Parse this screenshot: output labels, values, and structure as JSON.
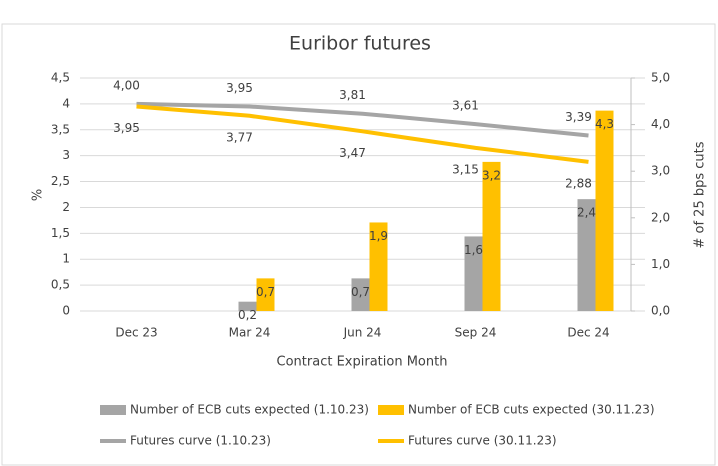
{
  "chart_data": {
    "type": "bar_line",
    "title": "Euribor futures",
    "xlabel": "Contract Expiration Month",
    "ylabel": "%",
    "y2label": "# of 25 bps cuts",
    "categories": [
      "Dec 23",
      "Mar 24",
      "Jun 24",
      "Sep 24",
      "Dec 24"
    ],
    "ylim": [
      0,
      4.5
    ],
    "yticks": [
      0,
      {
        "value": 0.5,
        "label": "0,5"
      },
      1,
      {
        "value": 1.5,
        "label": "1,5"
      },
      2,
      {
        "value": 2.5,
        "label": "2,5"
      },
      3,
      {
        "value": 3.5,
        "label": "3,5"
      },
      4,
      {
        "value": 4.5,
        "label": "4,5"
      }
    ],
    "y2lim": [
      0,
      5
    ],
    "y2ticks": [
      {
        "value": 0,
        "label": "0,0"
      },
      {
        "value": 1,
        "label": "1,0"
      },
      {
        "value": 2,
        "label": "2,0"
      },
      {
        "value": 3,
        "label": "3,0"
      },
      {
        "value": 4,
        "label": "4,0"
      },
      {
        "value": 5,
        "label": "5,0"
      }
    ],
    "series": [
      {
        "name": "Number of ECB cuts expected (1.10.23)",
        "type": "bar",
        "axis": "y2",
        "color": "#a5a5a5",
        "values": [
          null,
          0.2,
          0.7,
          1.6,
          2.4
        ],
        "value_labels": [
          null,
          "0,2",
          "0,7",
          "1,6",
          "2,4"
        ]
      },
      {
        "name": "Number of ECB cuts expected (30.11.23)",
        "type": "bar",
        "axis": "y2",
        "color": "#ffc000",
        "values": [
          null,
          0.7,
          1.9,
          3.2,
          4.3
        ],
        "value_labels": [
          null,
          "0,7",
          "1,9",
          "3,2",
          "4,3"
        ]
      },
      {
        "name": "Futures curve (1.10.23)",
        "type": "line",
        "color": "#a5a5a5",
        "values": [
          4.0,
          3.95,
          3.81,
          3.61,
          3.39
        ],
        "value_labels": [
          "4,00",
          "3,95",
          "3,81",
          "3,61",
          "3,39"
        ]
      },
      {
        "name": "Futures curve (30.11.23)",
        "type": "line",
        "color": "#ffc000",
        "values": [
          3.95,
          3.77,
          3.47,
          3.15,
          2.88
        ],
        "value_labels": [
          "3,95",
          "3,77",
          "3,47",
          "3,15",
          "2,88"
        ]
      }
    ]
  }
}
